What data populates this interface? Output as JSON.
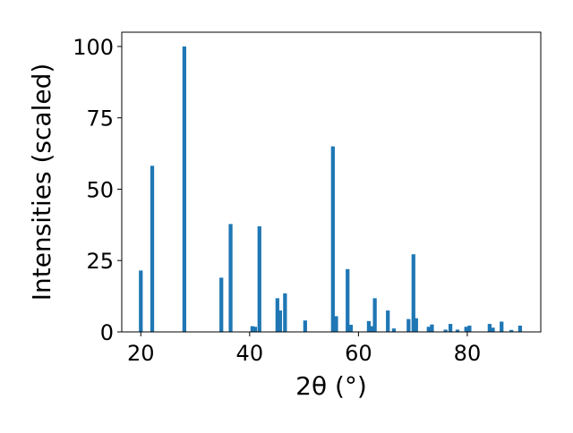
{
  "chart_data": {
    "type": "bar",
    "xlabel": "2θ (°)",
    "ylabel": "Intensities (scaled)",
    "xlim": [
      16.5,
      93.5
    ],
    "ylim": [
      0,
      105
    ],
    "xticks": [
      20,
      40,
      60,
      80
    ],
    "yticks": [
      0,
      25,
      50,
      75,
      100
    ],
    "grid": false,
    "bar_color": "#1f77b4",
    "bar_width_units": 0.7,
    "points": [
      {
        "x": 20.0,
        "y": 21.5
      },
      {
        "x": 22.1,
        "y": 58.2
      },
      {
        "x": 28.0,
        "y": 100.0
      },
      {
        "x": 34.8,
        "y": 19.0
      },
      {
        "x": 36.5,
        "y": 37.8
      },
      {
        "x": 40.5,
        "y": 2.0
      },
      {
        "x": 41.0,
        "y": 1.8
      },
      {
        "x": 41.8,
        "y": 37.0
      },
      {
        "x": 45.1,
        "y": 11.8
      },
      {
        "x": 45.6,
        "y": 7.5
      },
      {
        "x": 46.5,
        "y": 13.5
      },
      {
        "x": 50.2,
        "y": 4.0
      },
      {
        "x": 55.3,
        "y": 65.0
      },
      {
        "x": 55.9,
        "y": 5.5
      },
      {
        "x": 58.0,
        "y": 22.0
      },
      {
        "x": 58.6,
        "y": 2.5
      },
      {
        "x": 61.9,
        "y": 3.8
      },
      {
        "x": 62.4,
        "y": 2.0
      },
      {
        "x": 63.0,
        "y": 11.8
      },
      {
        "x": 65.4,
        "y": 7.5
      },
      {
        "x": 66.5,
        "y": 1.2
      },
      {
        "x": 69.2,
        "y": 4.5
      },
      {
        "x": 70.1,
        "y": 27.2
      },
      {
        "x": 70.6,
        "y": 4.8
      },
      {
        "x": 72.9,
        "y": 1.8
      },
      {
        "x": 73.5,
        "y": 2.6
      },
      {
        "x": 76.0,
        "y": 0.8
      },
      {
        "x": 76.9,
        "y": 2.8
      },
      {
        "x": 78.2,
        "y": 0.8
      },
      {
        "x": 79.8,
        "y": 1.8
      },
      {
        "x": 80.4,
        "y": 2.2
      },
      {
        "x": 84.1,
        "y": 2.8
      },
      {
        "x": 84.7,
        "y": 1.5
      },
      {
        "x": 86.3,
        "y": 3.6
      },
      {
        "x": 88.1,
        "y": 0.7
      },
      {
        "x": 89.7,
        "y": 2.2
      }
    ]
  }
}
